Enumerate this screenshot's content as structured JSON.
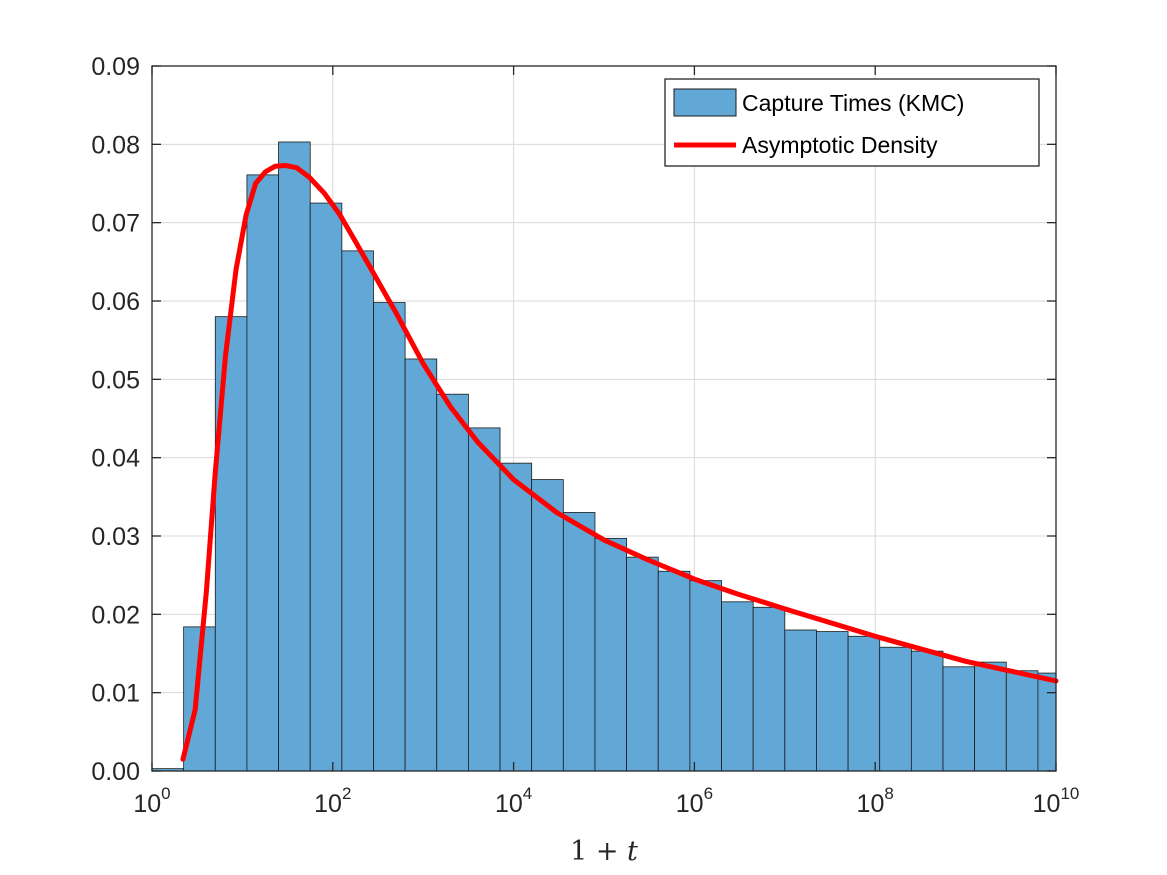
{
  "chart_data": {
    "type": "bar",
    "xlabel": "1 + t",
    "ylabel": "",
    "x_scale": "log",
    "xlim": [
      1,
      10000000000
    ],
    "ylim": [
      0,
      0.09
    ],
    "grid": true,
    "legend_position": "top-right",
    "x_ticks": [
      {
        "value": 1,
        "base": "10",
        "exp": "0"
      },
      {
        "value": 100,
        "base": "10",
        "exp": "2"
      },
      {
        "value": 10000,
        "base": "10",
        "exp": "4"
      },
      {
        "value": 1000000,
        "base": "10",
        "exp": "6"
      },
      {
        "value": 100000000,
        "base": "10",
        "exp": "8"
      },
      {
        "value": 10000000000,
        "base": "10",
        "exp": "10"
      }
    ],
    "y_ticks": [
      "0.00",
      "0.01",
      "0.02",
      "0.03",
      "0.04",
      "0.05",
      "0.06",
      "0.07",
      "0.08",
      "0.09"
    ],
    "series": [
      {
        "name": "Capture Times (KMC)",
        "kind": "histogram",
        "color": "#62A8D6",
        "edge_color": "#1a1a1a",
        "bin_width_log10": 0.35,
        "bin_start_log10": 0,
        "values": [
          0.0003,
          0.0184,
          0.058,
          0.0761,
          0.0803,
          0.0725,
          0.0664,
          0.0598,
          0.0526,
          0.0481,
          0.0438,
          0.0393,
          0.0372,
          0.033,
          0.0297,
          0.0273,
          0.0255,
          0.0243,
          0.0216,
          0.0209,
          0.018,
          0.0178,
          0.0172,
          0.0158,
          0.0153,
          0.0133,
          0.0139,
          0.0128,
          0.0125
        ]
      },
      {
        "name": "Asymptotic Density",
        "kind": "line",
        "color": "#FF0000",
        "x": [
          2.2,
          3.0,
          4.0,
          5.0,
          6.5,
          8.5,
          11,
          14,
          18,
          23,
          30,
          40,
          55,
          80,
          120,
          180,
          300,
          500,
          1000,
          2000,
          4000,
          10000,
          30000,
          100000,
          300000,
          1000000,
          3000000,
          10000000,
          100000000,
          1000000000,
          10000000000
        ],
        "y": [
          0.0015,
          0.0078,
          0.023,
          0.038,
          0.053,
          0.064,
          0.071,
          0.075,
          0.0765,
          0.0772,
          0.0773,
          0.077,
          0.0758,
          0.0738,
          0.071,
          0.0675,
          0.063,
          0.0585,
          0.052,
          0.0465,
          0.042,
          0.0372,
          0.033,
          0.0295,
          0.027,
          0.0245,
          0.0226,
          0.0207,
          0.0172,
          0.014,
          0.0115
        ]
      }
    ]
  }
}
